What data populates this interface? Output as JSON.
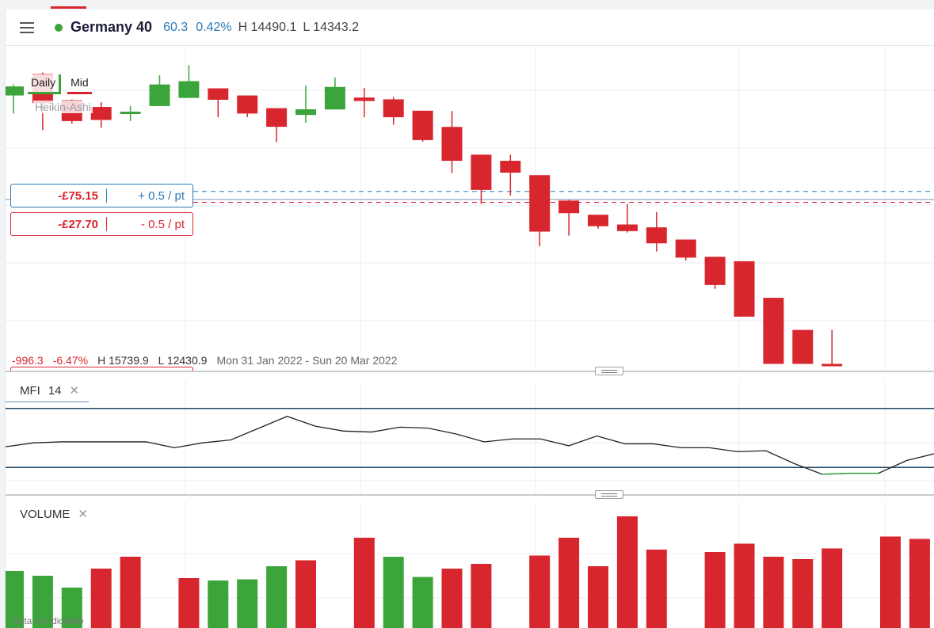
{
  "header": {
    "instrument": "Germany 40",
    "change": "60.3",
    "change_pct": "0.42%",
    "high": "H 14490.1",
    "low": "L 14343.2",
    "status_color": "#3ba53b"
  },
  "toolbar": {
    "period": "Daily",
    "price_type": "Mid",
    "chart_style": "Heikin-Ashi"
  },
  "positions": [
    {
      "amount": "-£75.15",
      "rate": "+ 0.5 / pt",
      "color": "#2c7ab8"
    },
    {
      "amount": "-£27.70",
      "rate": "- 0.5 / pt",
      "color": "#d7262e"
    }
  ],
  "range_stats": {
    "change": "-996.3",
    "change_pct": "-6.47%",
    "high": "H 15739.9",
    "low": "L 12430.9",
    "date_range": "Mon 31 Jan 2022 - Sun 20 Mar 2022"
  },
  "indicators": {
    "mfi": {
      "name": "MFI",
      "period": "14",
      "close": "✕"
    },
    "volume": {
      "name": "VOLUME",
      "close": "✕"
    }
  },
  "footer_note": "Data is indicative",
  "colors": {
    "up": "#3ba53b",
    "down": "#d7262e",
    "accent_blue": "#2c7ab8"
  },
  "chart_data": [
    {
      "type": "candlestick",
      "series_style": "Heikin-Ashi",
      "ylim": [
        12350,
        15800
      ],
      "candles": [
        {
          "o": 15282,
          "h": 15400,
          "l": 15090,
          "c": 15378,
          "dir": "up"
        },
        {
          "o": 15510,
          "h": 15525,
          "l": 14915,
          "c": 15200,
          "dir": "down"
        },
        {
          "o": 15232,
          "h": 15240,
          "l": 14983,
          "c": 15010,
          "dir": "down"
        },
        {
          "o": 15160,
          "h": 15212,
          "l": 14938,
          "c": 15022,
          "dir": "down"
        },
        {
          "o": 15087,
          "h": 15170,
          "l": 15010,
          "c": 15110,
          "dir": "up"
        },
        {
          "o": 15170,
          "h": 15497,
          "l": 15170,
          "c": 15399,
          "dir": "up"
        },
        {
          "o": 15256,
          "h": 15604,
          "l": 15256,
          "c": 15434,
          "dir": "up"
        },
        {
          "o": 15358,
          "h": 15358,
          "l": 15051,
          "c": 15236,
          "dir": "down"
        },
        {
          "o": 15282,
          "h": 15282,
          "l": 15051,
          "c": 15090,
          "dir": "down"
        },
        {
          "o": 15147,
          "h": 15147,
          "l": 14787,
          "c": 14949,
          "dir": "down"
        },
        {
          "o": 15075,
          "h": 15387,
          "l": 14991,
          "c": 15135,
          "dir": "up"
        },
        {
          "o": 15133,
          "h": 15473,
          "l": 15133,
          "c": 15373,
          "dir": "up"
        },
        {
          "o": 15260,
          "h": 15362,
          "l": 15051,
          "c": 15223,
          "dir": "down"
        },
        {
          "o": 15241,
          "h": 15266,
          "l": 14971,
          "c": 15051,
          "dir": "down"
        },
        {
          "o": 15120,
          "h": 15120,
          "l": 14791,
          "c": 14808,
          "dir": "down"
        },
        {
          "o": 14948,
          "h": 15117,
          "l": 14458,
          "c": 14588,
          "dir": "down"
        },
        {
          "o": 14653,
          "h": 14653,
          "l": 14130,
          "c": 14278,
          "dir": "down"
        },
        {
          "o": 14588,
          "h": 14653,
          "l": 14218,
          "c": 14462,
          "dir": "down"
        },
        {
          "o": 14435,
          "h": 14435,
          "l": 13680,
          "c": 13835,
          "dir": "down"
        },
        {
          "o": 14165,
          "h": 14173,
          "l": 13792,
          "c": 14031,
          "dir": "down"
        },
        {
          "o": 14015,
          "h": 14015,
          "l": 13867,
          "c": 13893,
          "dir": "down"
        },
        {
          "o": 13911,
          "h": 14130,
          "l": 13825,
          "c": 13841,
          "dir": "down"
        },
        {
          "o": 13881,
          "h": 14043,
          "l": 13624,
          "c": 13711,
          "dir": "down"
        },
        {
          "o": 13751,
          "h": 13751,
          "l": 13529,
          "c": 13559,
          "dir": "down"
        },
        {
          "o": 13568,
          "h": 13568,
          "l": 13227,
          "c": 13268,
          "dir": "down"
        },
        {
          "o": 13521,
          "h": 13521,
          "l": 12932,
          "c": 12932,
          "dir": "down"
        },
        {
          "o": 13132,
          "h": 13132,
          "l": 12430,
          "c": 12430,
          "dir": "down"
        },
        {
          "o": 12791,
          "h": 12791,
          "l": 12430,
          "c": 12430,
          "dir": "down"
        },
        {
          "o": 12430,
          "h": 12791,
          "l": 12430,
          "c": 12430,
          "dir": "down"
        }
      ],
      "reference_levels": [
        {
          "price": 14262,
          "style": "dashed",
          "color": "#2c7ab8"
        },
        {
          "price": 14147,
          "style": "dashed",
          "color": "#d7262e"
        },
        {
          "price": 14177,
          "style": "solid",
          "color": "#7f97b3"
        }
      ]
    },
    {
      "type": "line",
      "name": "MFI",
      "ylim": [
        0,
        100
      ],
      "levels": [
        80,
        20
      ],
      "values": [
        41,
        45,
        46,
        46,
        46,
        46,
        40,
        45,
        48,
        60,
        72,
        62,
        57,
        56,
        61,
        60,
        54,
        46,
        49,
        49,
        42,
        52,
        44,
        44,
        40,
        40,
        36,
        37,
        24,
        13,
        14,
        14,
        27,
        34
      ]
    },
    {
      "type": "bar",
      "name": "VOLUME",
      "ylim": [
        0,
        100
      ],
      "bars": [
        {
          "v": 48,
          "dir": "up"
        },
        {
          "v": 44,
          "dir": "up"
        },
        {
          "v": 34,
          "dir": "up"
        },
        {
          "v": 50,
          "dir": "down"
        },
        {
          "v": 60,
          "dir": "down"
        },
        {
          "v": 0,
          "dir": "none"
        },
        {
          "v": 42,
          "dir": "down"
        },
        {
          "v": 40,
          "dir": "up"
        },
        {
          "v": 41,
          "dir": "up"
        },
        {
          "v": 52,
          "dir": "up"
        },
        {
          "v": 57,
          "dir": "down"
        },
        {
          "v": 0,
          "dir": "none"
        },
        {
          "v": 76,
          "dir": "down"
        },
        {
          "v": 60,
          "dir": "up"
        },
        {
          "v": 43,
          "dir": "up"
        },
        {
          "v": 50,
          "dir": "down"
        },
        {
          "v": 54,
          "dir": "down"
        },
        {
          "v": 0,
          "dir": "none"
        },
        {
          "v": 61,
          "dir": "down"
        },
        {
          "v": 76,
          "dir": "down"
        },
        {
          "v": 52,
          "dir": "down"
        },
        {
          "v": 94,
          "dir": "down"
        },
        {
          "v": 66,
          "dir": "down"
        },
        {
          "v": 0,
          "dir": "none"
        },
        {
          "v": 64,
          "dir": "down"
        },
        {
          "v": 71,
          "dir": "down"
        },
        {
          "v": 60,
          "dir": "down"
        },
        {
          "v": 58,
          "dir": "down"
        },
        {
          "v": 67,
          "dir": "down"
        },
        {
          "v": 0,
          "dir": "none"
        },
        {
          "v": 77,
          "dir": "down"
        },
        {
          "v": 75,
          "dir": "down"
        },
        {
          "v": 75,
          "dir": "up"
        }
      ]
    }
  ]
}
